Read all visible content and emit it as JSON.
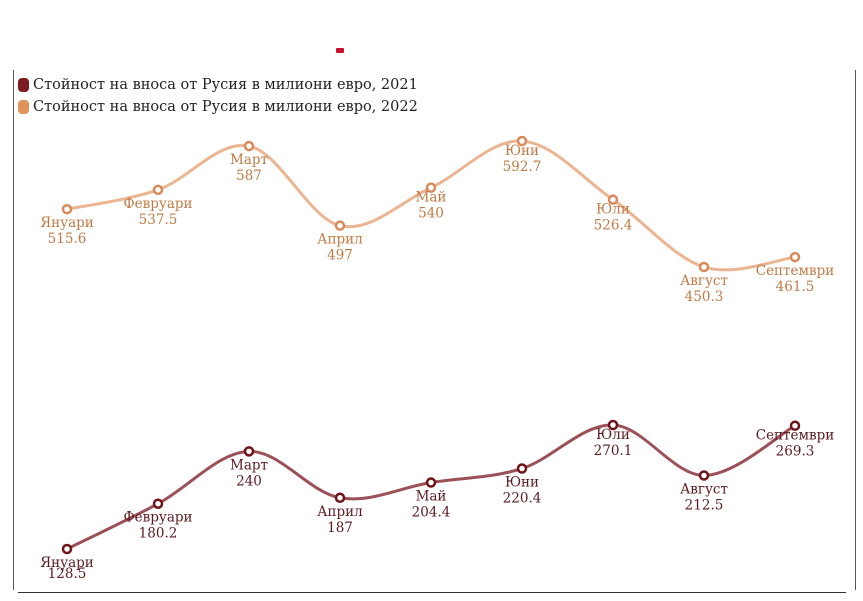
{
  "chart_data": {
    "type": "line",
    "title": "",
    "xlabel": "",
    "ylabel": "",
    "categories": [
      "Януари",
      "Февруари",
      "Март",
      "Април",
      "Май",
      "Юни",
      "Юли",
      "Август",
      "Септември"
    ],
    "series": [
      {
        "name": "Стойност на вноса от Русия в милиони евро, 2021",
        "color": "#7a1c22",
        "values": [
          128.5,
          180.2,
          240,
          187,
          204.4,
          220.4,
          270.1,
          212.5,
          269.3
        ],
        "value_labels": [
          "128.5",
          "180.2",
          "240",
          "187",
          "204.4",
          "220.4",
          "270.1",
          "212.5",
          "269.3"
        ]
      },
      {
        "name": "Стойност на вноса от Русия в милиони евро, 2022",
        "color": "#e0935a",
        "values": [
          515.6,
          537.5,
          587,
          497,
          540,
          592.7,
          526.4,
          450.3,
          461.5
        ],
        "value_labels": [
          "515.6",
          "537.5",
          "587",
          "497",
          "540",
          "592.7",
          "526.4",
          "450.3",
          "461.5"
        ]
      }
    ],
    "legend_position": "top-left",
    "grid": false
  }
}
